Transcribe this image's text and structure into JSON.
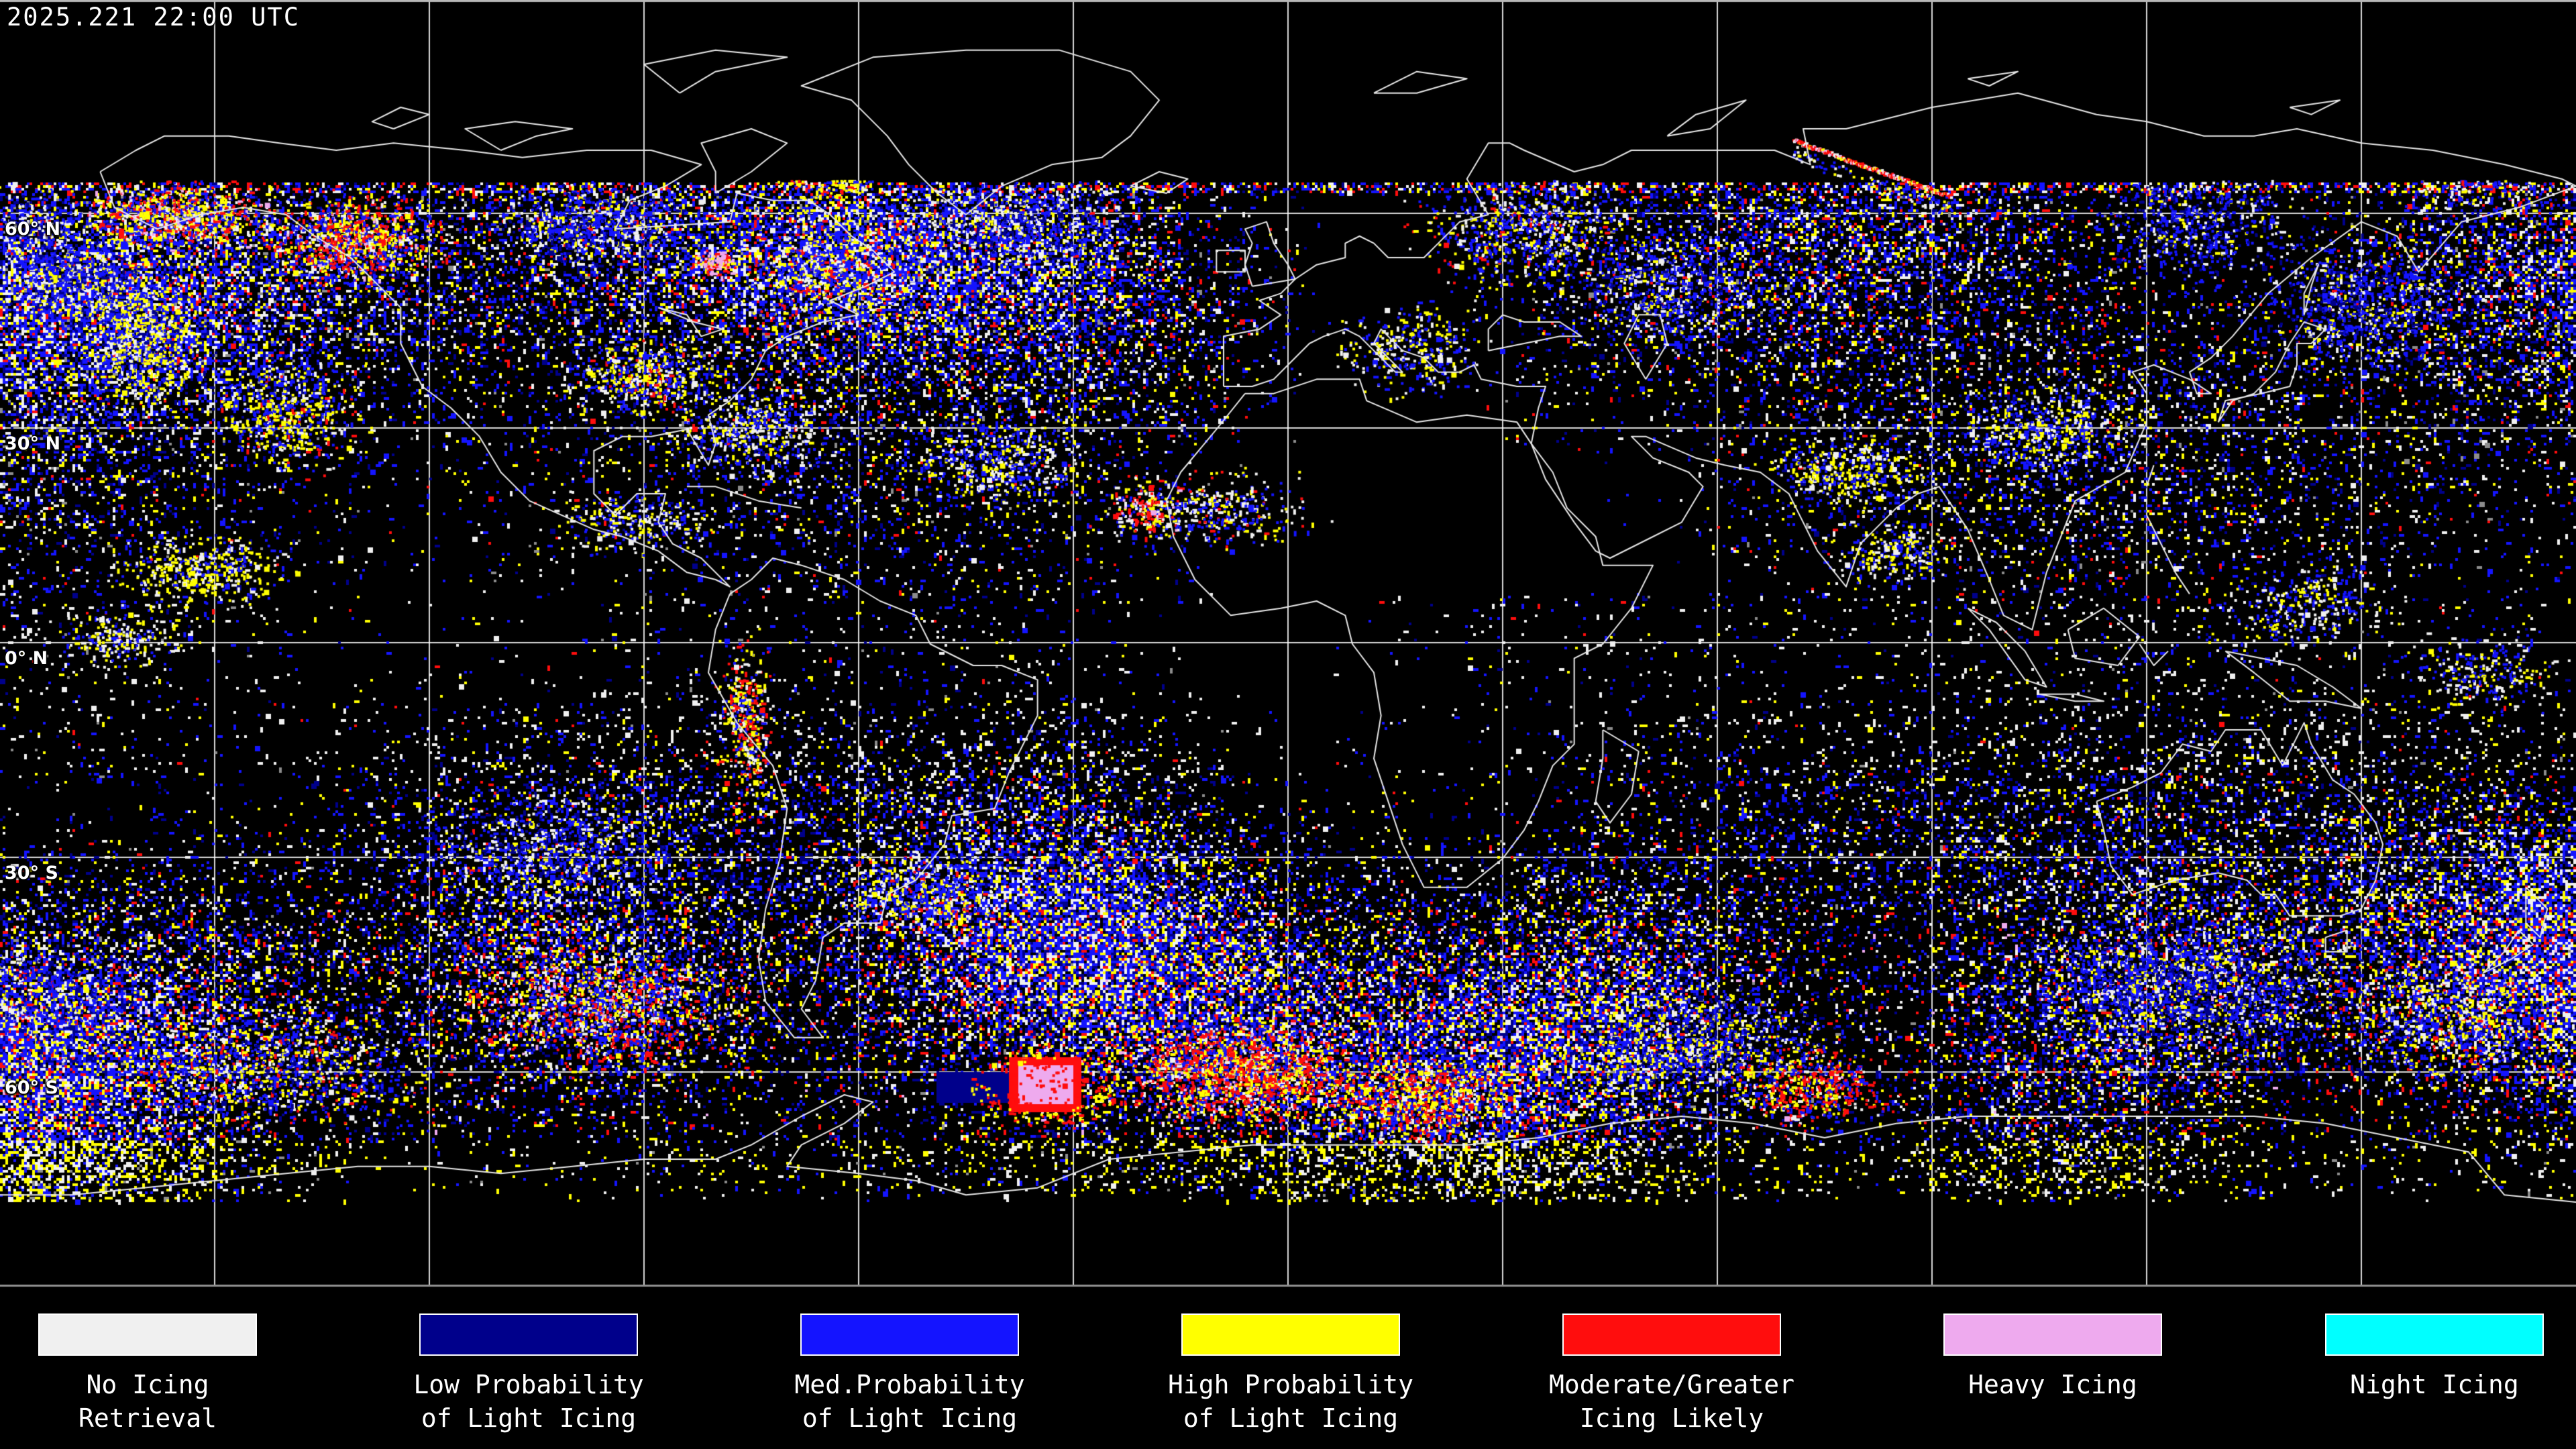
{
  "header": {
    "timestamp": "2025.221 22:00 UTC"
  },
  "map": {
    "projection": "equirectangular",
    "background": "#000000",
    "coastline_color": "#e8e8e8",
    "gridline_color": "#ffffff",
    "grid_spacing_deg": 30,
    "latitude_labels": [
      {
        "text": "60° N",
        "lat": 60
      },
      {
        "text": "30° N",
        "lat": 30
      },
      {
        "text": "0° N",
        "lat": 0
      },
      {
        "text": "30° S",
        "lat": -30
      },
      {
        "text": "60° S",
        "lat": -60
      }
    ]
  },
  "legend": {
    "items": [
      {
        "name": "no-icing-retrieval",
        "line1": "No Icing",
        "line2": "Retrieval",
        "color": "#f0f0f0"
      },
      {
        "name": "low-prob-light-icing",
        "line1": "Low Probability",
        "line2": "of Light Icing",
        "color": "#00008b"
      },
      {
        "name": "med-prob-light-icing",
        "line1": "Med.Probability",
        "line2": "of Light Icing",
        "color": "#1414ff"
      },
      {
        "name": "high-prob-light-icing",
        "line1": "High Probability",
        "line2": "of Light Icing",
        "color": "#ffff00"
      },
      {
        "name": "moderate-greater-icing",
        "line1": "Moderate/Greater",
        "line2": "Icing Likely",
        "color": "#ff0d0d"
      },
      {
        "name": "heavy-icing",
        "line1": "Heavy Icing",
        "line2": "",
        "color": "#eeaaee"
      },
      {
        "name": "night-icing",
        "line1": "Night Icing",
        "line2": "",
        "color": "#00ffff"
      }
    ]
  }
}
